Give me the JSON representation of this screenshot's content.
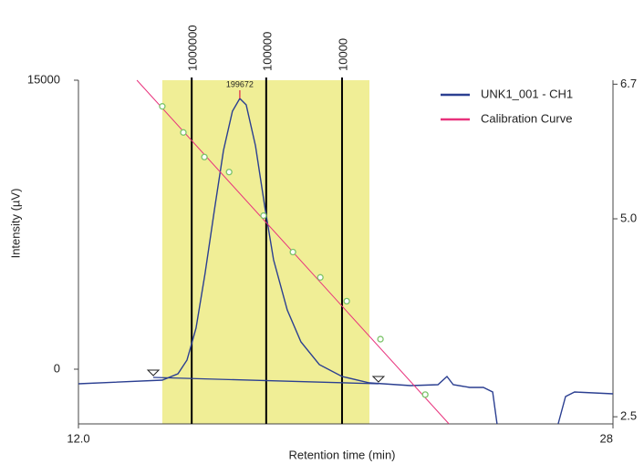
{
  "chart_data": {
    "type": "line",
    "xlabel": "Retention time (min)",
    "ylabel": "Intensity (µV)",
    "xlim": [
      12,
      28
    ],
    "xticks": [
      {
        "value": 12,
        "label": "12.0"
      },
      28
    ],
    "ylim": [
      -2839,
      15000
    ],
    "yticks": [
      0,
      15000
    ],
    "y2lim": [
      2.41,
      6.75
    ],
    "y2ticks": [
      6.7,
      {
        "value": 5.0,
        "label": "5.0"
      },
      2.5
    ],
    "highlight": {
      "range": [
        14.51,
        20.71
      ],
      "color": "#f0ee96"
    },
    "mw_markers": [
      {
        "label": 1000000,
        "x": 15.39
      },
      {
        "label": 100000,
        "x": 17.62
      },
      {
        "label": 10000,
        "x": 19.89
      }
    ],
    "peak": {
      "mw": 199672,
      "x": 16.83,
      "value": 14054,
      "color": "#e0304a"
    },
    "integration_marks": {
      "x": [
        14.24,
        20.98
      ],
      "values": [
        -426,
        -757
      ]
    },
    "legend": "upper right",
    "series": [
      {
        "name": "UNK1_001 - CH1",
        "color": "#2b3f91",
        "x": [
          12.0,
          14.51,
          14.98,
          15.25,
          15.52,
          15.79,
          16.07,
          16.34,
          16.61,
          16.83,
          17.02,
          17.3,
          17.57,
          17.84,
          18.25,
          18.66,
          19.21,
          19.89,
          20.71,
          21.94,
          22.76,
          23.03,
          23.22,
          23.71,
          24.12,
          24.4,
          24.53,
          25.5,
          26.36,
          26.58,
          26.85,
          28.0
        ],
        "values": [
          -757,
          -568,
          -237,
          473,
          2129,
          4968,
          8281,
          11356,
          13391,
          14054,
          13722,
          11593,
          8517,
          5678,
          3076,
          1420,
          237,
          -379,
          -710,
          -852,
          -804,
          -379,
          -804,
          -946,
          -946,
          -1183,
          -2839,
          null,
          -2839,
          -1420,
          -1183,
          -1278
        ]
      },
      {
        "name": "Calibration Curve",
        "color": "#e8327c",
        "axis": "y2",
        "x": [
          13.75,
          23.09
        ],
        "values": [
          6.75,
          2.41
        ],
        "points": {
          "x": [
            14.51,
            15.14,
            15.77,
            16.51,
            17.54,
            18.42,
            19.24,
            20.03,
            21.04,
            22.38
          ],
          "values": [
            6.42,
            6.09,
            5.78,
            5.59,
            5.04,
            4.58,
            4.26,
            3.96,
            3.48,
            2.78
          ],
          "color": "#7cc46a"
        }
      }
    ]
  }
}
